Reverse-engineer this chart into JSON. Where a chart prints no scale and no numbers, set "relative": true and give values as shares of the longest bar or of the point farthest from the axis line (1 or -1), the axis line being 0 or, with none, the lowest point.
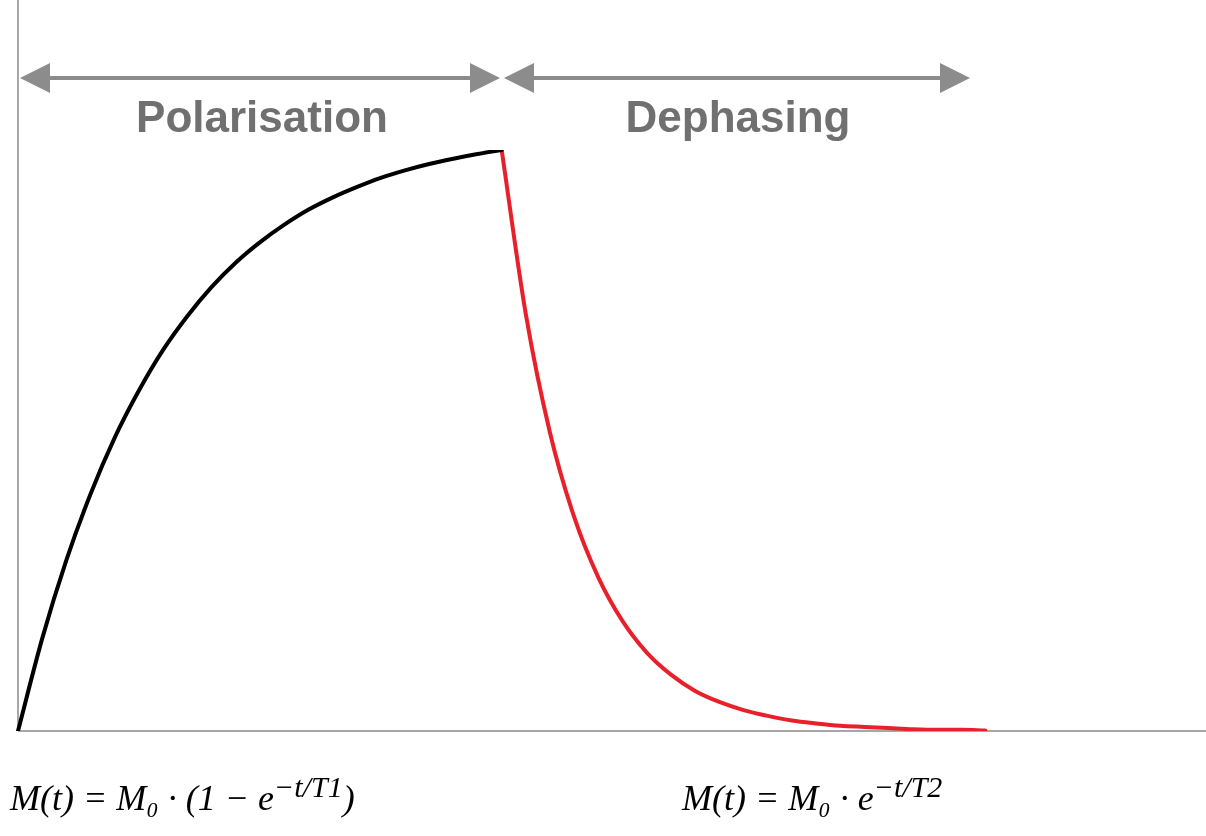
{
  "chart_data": {
    "type": "line",
    "relative": true,
    "legend": false,
    "marker": "none",
    "line_style": "solid",
    "categories": [
      null,
      null,
      null,
      null,
      null,
      null,
      null,
      null,
      null,
      null,
      null,
      null,
      null,
      null,
      null,
      null,
      null,
      null,
      null,
      null,
      null,
      null,
      null,
      null,
      null,
      null,
      null,
      null,
      null,
      null,
      null,
      null,
      null,
      null,
      null,
      null,
      null,
      null,
      null,
      null,
      null,
      null,
      null,
      null,
      null,
      null,
      null,
      null,
      null,
      null
    ],
    "series": [
      {
        "color": "#000000",
        "values": [
          0,
          0.159,
          0.294,
          0.408,
          0.505,
          0.586,
          0.656,
          0.714,
          0.764,
          0.806,
          0.841,
          0.871,
          0.897,
          0.918,
          0.936,
          0.952,
          0.965,
          0.976,
          0.985,
          0.993,
          1,
          null,
          null,
          null,
          null,
          null,
          null,
          null,
          null,
          null,
          null,
          null,
          null,
          null,
          null,
          null,
          null,
          null,
          null,
          null,
          null,
          null,
          null,
          null,
          null,
          null,
          null,
          null,
          null,
          null
        ]
      },
      {
        "color": "#e8202a",
        "values": [
          null,
          null,
          null,
          null,
          null,
          null,
          null,
          null,
          null,
          null,
          null,
          null,
          null,
          null,
          null,
          null,
          null,
          null,
          null,
          null,
          1,
          0.717,
          0.513,
          0.368,
          0.264,
          0.189,
          0.135,
          0.097,
          0.069,
          0.05,
          0.036,
          0.026,
          0.018,
          0.013,
          0.009,
          0.007,
          0.005,
          0.003,
          0.002,
          0.002,
          0.001,
          null,
          null,
          null,
          null,
          null,
          null,
          null,
          null,
          null
        ]
      }
    ],
    "annotations": [
      "Polarisation",
      "Dephasing",
      "M(t) = M₀ · (1 − e$^{−t/T1}$)",
      "M(t) = M₀ · e$^{−t/T2}$"
    ]
  }
}
